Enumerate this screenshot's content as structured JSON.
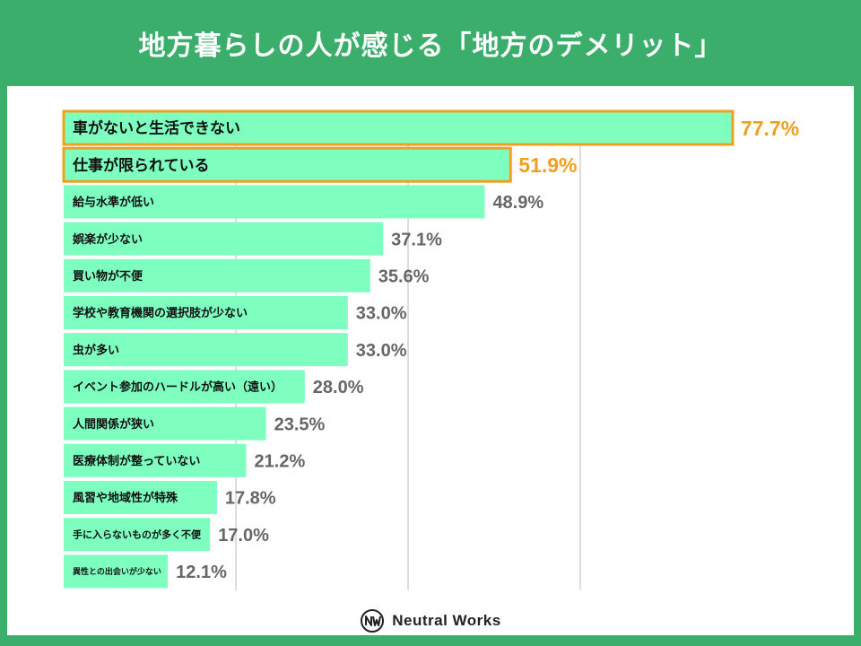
{
  "title": "地方暮らしの人が感じる「地方のデメリット」",
  "brand": "Neutral Works",
  "chart_data": {
    "type": "bar",
    "orientation": "horizontal",
    "categories": [
      "車がないと生活できない",
      "仕事が限られている",
      "給与水準が低い",
      "娯楽が少ない",
      "買い物が不便",
      "学校や教育機関の選択肢が少ない",
      "虫が多い",
      "イベント参加のハードルが高い（遠い）",
      "人間関係が狭い",
      "医療体制が整っていない",
      "風習や地域性が特殊",
      "手に入らないものが多く不便",
      "異性との出会いが少ない"
    ],
    "values": [
      77.7,
      51.9,
      48.9,
      37.1,
      35.6,
      33.0,
      33.0,
      28.0,
      23.5,
      21.2,
      17.8,
      17.0,
      12.1
    ],
    "value_labels": [
      "77.7%",
      "51.9%",
      "48.9%",
      "37.1%",
      "35.6%",
      "33.0%",
      "33.0%",
      "28.0%",
      "23.5%",
      "21.2%",
      "17.8%",
      "17.0%",
      "12.1%"
    ],
    "highlighted": [
      0,
      1
    ],
    "xlim": [
      0,
      80
    ],
    "grid": true,
    "colors": {
      "bar": "#7effc0",
      "highlight_border": "#f0a020",
      "value_text": "#666666",
      "highlight_text": "#f0a020",
      "gridline": "#dddddd"
    }
  }
}
